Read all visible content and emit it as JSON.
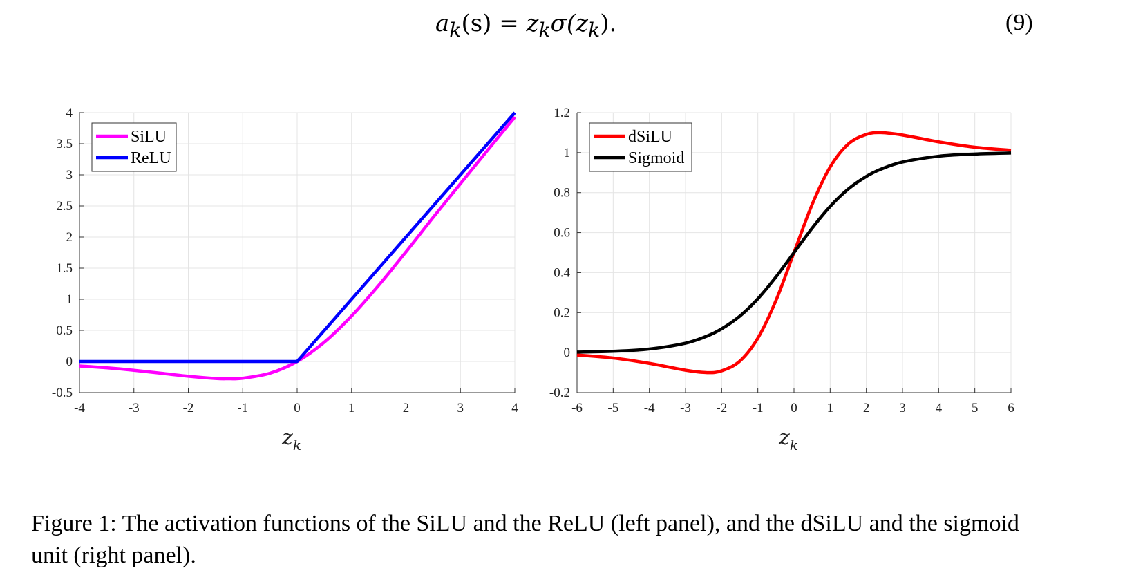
{
  "equation": {
    "lhs": "a",
    "lhs_sub": "k",
    "arg": "(s) = ",
    "rhs": "z",
    "rhs_sub": "k",
    "sigma": "σ(z",
    "sigma_sub": "k",
    "tail": ")."
  },
  "equation_number": "(9)",
  "caption": "Figure 1: The activation functions of the SiLU and the ReLU (left panel), and the dSiLU and the sigmoid unit (right panel).",
  "chart_data": [
    {
      "type": "line",
      "title": "",
      "xlabel": "z_k",
      "ylabel": "",
      "xlim": [
        -4,
        4
      ],
      "ylim": [
        -0.5,
        4
      ],
      "xticks": [
        "-4",
        "-3",
        "-2",
        "-1",
        "0",
        "1",
        "2",
        "3",
        "4"
      ],
      "yticks": [
        "-0.5",
        "0",
        "0.5",
        "1",
        "1.5",
        "2",
        "2.5",
        "3",
        "3.5",
        "4"
      ],
      "grid": true,
      "legend_position": "top-left",
      "x": [
        -4,
        -3.5,
        -3,
        -2.5,
        -2,
        -1.5,
        -1.28,
        -1,
        -0.5,
        0,
        0.5,
        1,
        1.5,
        2,
        2.5,
        3,
        3.5,
        4
      ],
      "series": [
        {
          "name": "SiLU",
          "color": "#ff00ff",
          "values": [
            -0.072,
            -0.102,
            -0.142,
            -0.189,
            -0.238,
            -0.274,
            -0.278,
            -0.269,
            -0.189,
            0,
            0.311,
            0.731,
            1.226,
            1.762,
            2.317,
            2.858,
            3.396,
            3.928
          ]
        },
        {
          "name": "ReLU",
          "color": "#0000ff",
          "values": [
            0,
            0,
            0,
            0,
            0,
            0,
            0,
            0,
            0,
            0,
            0.5,
            1,
            1.5,
            2,
            2.5,
            3,
            3.5,
            4
          ]
        }
      ]
    },
    {
      "type": "line",
      "title": "",
      "xlabel": "z_k",
      "ylabel": "",
      "xlim": [
        -6,
        6
      ],
      "ylim": [
        -0.2,
        1.2
      ],
      "xticks": [
        "-6",
        "-5",
        "-4",
        "-3",
        "-2",
        "-1",
        "0",
        "1",
        "2",
        "3",
        "4",
        "5",
        "6"
      ],
      "yticks": [
        "-0.2",
        "0",
        "0.2",
        "0.4",
        "0.6",
        "0.8",
        "1",
        "1.2"
      ],
      "grid": true,
      "legend_position": "top-left",
      "x": [
        -6,
        -5,
        -4,
        -3,
        -2.4,
        -2,
        -1.5,
        -1,
        -0.5,
        0,
        0.5,
        1,
        1.5,
        2,
        2.4,
        3,
        4,
        5,
        6
      ],
      "series": [
        {
          "name": "dSiLU",
          "color": "#ff0000",
          "values": [
            -0.012,
            -0.027,
            -0.054,
            -0.088,
            -0.1,
            -0.091,
            -0.043,
            0.072,
            0.26,
            0.5,
            0.74,
            0.928,
            1.043,
            1.091,
            1.1,
            1.088,
            1.054,
            1.027,
            1.012
          ]
        },
        {
          "name": "Sigmoid",
          "color": "#000000",
          "values": [
            0.0025,
            0.0067,
            0.018,
            0.047,
            0.083,
            0.119,
            0.182,
            0.269,
            0.378,
            0.5,
            0.622,
            0.731,
            0.818,
            0.881,
            0.917,
            0.953,
            0.982,
            0.993,
            0.998
          ]
        }
      ]
    }
  ]
}
